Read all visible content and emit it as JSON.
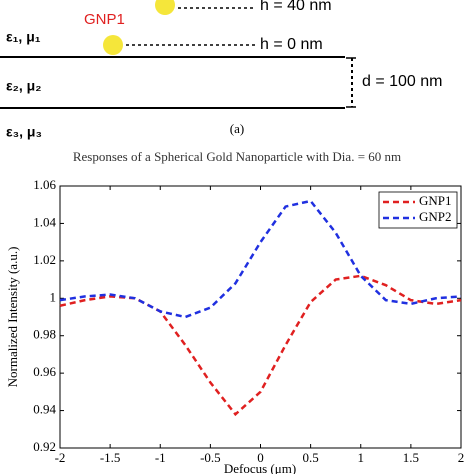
{
  "diagram": {
    "top_height": "h = 40 nm",
    "particle_label": "GNP1",
    "medium1": "ε₁, μ₁",
    "bottom_height": "h = 0 nm",
    "medium2": "ε₂, μ₂",
    "thickness": "d = 100 nm",
    "medium3": "ε₃, μ₃",
    "panel": "(a)"
  },
  "chart_data": {
    "type": "line",
    "title": "Responses of a Spherical Gold Nanoparticle with Dia. = 60 nm",
    "x_label": "Defocus (μm)",
    "y_label": "Normalized Intensity (a.u.)",
    "x": [
      -2,
      -1.75,
      -1.5,
      -1.25,
      -1,
      -0.75,
      -0.5,
      -0.25,
      0,
      0.25,
      0.5,
      0.75,
      1,
      1.25,
      1.5,
      1.75,
      2
    ],
    "series": [
      {
        "name": "GNP1",
        "color": "#e02020",
        "values": [
          0.996,
          0.999,
          1.001,
          1.0,
          0.993,
          0.975,
          0.955,
          0.938,
          0.95,
          0.975,
          0.998,
          1.01,
          1.012,
          1.007,
          0.999,
          0.997,
          0.999
        ]
      },
      {
        "name": "GNP2",
        "color": "#2030e0",
        "values": [
          0.999,
          1.001,
          1.002,
          1.0,
          0.993,
          0.99,
          0.995,
          1.008,
          1.03,
          1.049,
          1.052,
          1.035,
          1.012,
          0.999,
          0.997,
          1.0,
          1.001
        ]
      }
    ],
    "xlim": [
      -2,
      2
    ],
    "xticks": [
      -2,
      -1.5,
      -1,
      -0.5,
      0,
      0.5,
      1,
      1.5,
      2
    ],
    "ylim": [
      0.92,
      1.06
    ],
    "yticks": [
      0.92,
      0.94,
      0.96,
      0.98,
      1,
      1.02,
      1.04,
      1.06
    ],
    "legend": "top-right"
  }
}
